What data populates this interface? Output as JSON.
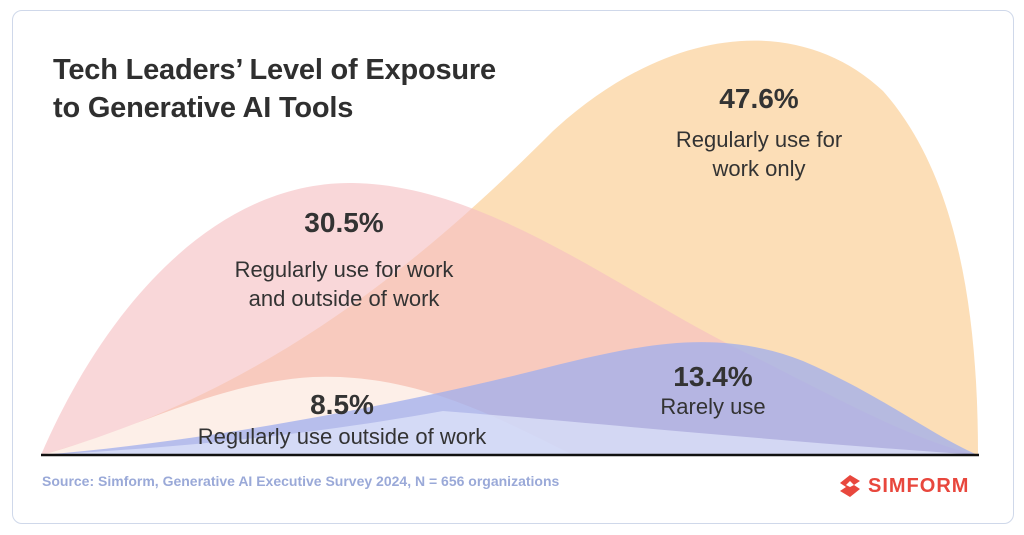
{
  "title": {
    "line1": "Tech Leaders’ Level of Exposure",
    "line2": "to Generative AI Tools"
  },
  "chart_data": {
    "type": "area",
    "title": "Tech Leaders’ Level of Exposure to Generative AI Tools",
    "unit": "%",
    "series": [
      {
        "name": "Regularly use for work only",
        "value": 47.6,
        "label": "47.6%",
        "color": "#fcd9ad"
      },
      {
        "name": "Regularly use for work and outside of work",
        "value": 30.5,
        "label": "30.5%",
        "color": "#f7c6c7"
      },
      {
        "name": "Rarely use",
        "value": 13.4,
        "label": "13.4%",
        "color": "#aab6ef"
      },
      {
        "name": "Regularly use outside of work",
        "value": 8.5,
        "label": "8.5%",
        "color": "#fdf1e8"
      }
    ],
    "labels": {
      "work_only": {
        "pct": "47.6%",
        "desc1": "Regularly use for",
        "desc2": "work only"
      },
      "both": {
        "pct": "30.5%",
        "desc1": "Regularly use for work",
        "desc2": "and outside of work"
      },
      "rarely": {
        "pct": "13.4%",
        "desc1": "Rarely use"
      },
      "outside": {
        "pct": "8.5%",
        "desc1": "Regularly use outside of work"
      }
    }
  },
  "source": "Source: Simform, Generative AI Executive Survey 2024, N = 656 organizations",
  "brand": {
    "name": "SIMFORM",
    "icon": "simform-logo-icon",
    "color": "#e8473d"
  }
}
